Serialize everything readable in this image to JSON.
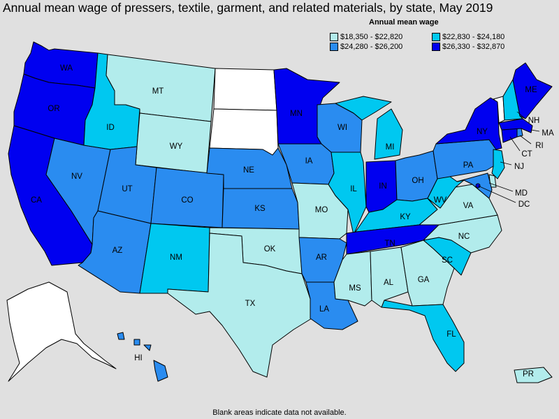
{
  "title": "Annual mean wage of pressers, textile, garment, and related materials, by state, May 2019",
  "legend": {
    "title": "Annual mean wage",
    "items": [
      {
        "label": "$18,350 - $22,820",
        "color": "#b2ecec"
      },
      {
        "label": "$22,830 - $24,180",
        "color": "#00c8f0"
      },
      {
        "label": "$24,280 - $26,200",
        "color": "#2a8cf0"
      },
      {
        "label": "$26,330 - $32,870",
        "color": "#0000f0"
      }
    ]
  },
  "footnote": "Blank areas indicate data not available.",
  "states": {
    "WA": {
      "label": "WA",
      "bin": 3
    },
    "OR": {
      "label": "OR",
      "bin": 3
    },
    "CA": {
      "label": "CA",
      "bin": 3
    },
    "NV": {
      "label": "NV",
      "bin": 2
    },
    "ID": {
      "label": "ID",
      "bin": 1
    },
    "MT": {
      "label": "MT",
      "bin": 0
    },
    "WY": {
      "label": "WY",
      "bin": 0
    },
    "UT": {
      "label": "UT",
      "bin": 2
    },
    "AZ": {
      "label": "AZ",
      "bin": 2
    },
    "CO": {
      "label": "CO",
      "bin": 2
    },
    "NM": {
      "label": "NM",
      "bin": 1
    },
    "ND": {
      "label": "",
      "bin": null
    },
    "SD": {
      "label": "",
      "bin": null
    },
    "NE": {
      "label": "NE",
      "bin": 2
    },
    "KS": {
      "label": "KS",
      "bin": 2
    },
    "OK": {
      "label": "OK",
      "bin": 0
    },
    "TX": {
      "label": "TX",
      "bin": 0
    },
    "MN": {
      "label": "MN",
      "bin": 3
    },
    "IA": {
      "label": "IA",
      "bin": 2
    },
    "MO": {
      "label": "MO",
      "bin": 0
    },
    "AR": {
      "label": "AR",
      "bin": 2
    },
    "LA": {
      "label": "LA",
      "bin": 2
    },
    "WI": {
      "label": "WI",
      "bin": 2
    },
    "IL": {
      "label": "IL",
      "bin": 1
    },
    "MI": {
      "label": "MI",
      "bin": 1
    },
    "IN": {
      "label": "IN",
      "bin": 3
    },
    "OH": {
      "label": "OH",
      "bin": 2
    },
    "KY": {
      "label": "KY",
      "bin": 1
    },
    "TN": {
      "label": "TN",
      "bin": 3
    },
    "MS": {
      "label": "MS",
      "bin": 0
    },
    "AL": {
      "label": "AL",
      "bin": 0
    },
    "GA": {
      "label": "GA",
      "bin": 0
    },
    "FL": {
      "label": "FL",
      "bin": 1
    },
    "SC": {
      "label": "SC",
      "bin": 1
    },
    "NC": {
      "label": "NC",
      "bin": 0
    },
    "VA": {
      "label": "VA",
      "bin": 0
    },
    "WV": {
      "label": "WV",
      "bin": 1
    },
    "PA": {
      "label": "PA",
      "bin": 2
    },
    "NY": {
      "label": "NY",
      "bin": 3
    },
    "NJ": {
      "label": "NJ",
      "bin": 1
    },
    "DE": {
      "label": "",
      "bin": 0
    },
    "MD": {
      "label": "MD",
      "bin": 2
    },
    "DC": {
      "label": "DC",
      "bin": 3
    },
    "CT": {
      "label": "CT",
      "bin": 3
    },
    "RI": {
      "label": "RI",
      "bin": 2
    },
    "MA": {
      "label": "MA",
      "bin": 3
    },
    "VT": {
      "label": "",
      "bin": null
    },
    "NH": {
      "label": "NH",
      "bin": 1
    },
    "ME": {
      "label": "ME",
      "bin": 3
    },
    "AK": {
      "label": "",
      "bin": null
    },
    "HI": {
      "label": "HI",
      "bin": 2
    },
    "PR": {
      "label": "PR",
      "bin": 0
    }
  }
}
